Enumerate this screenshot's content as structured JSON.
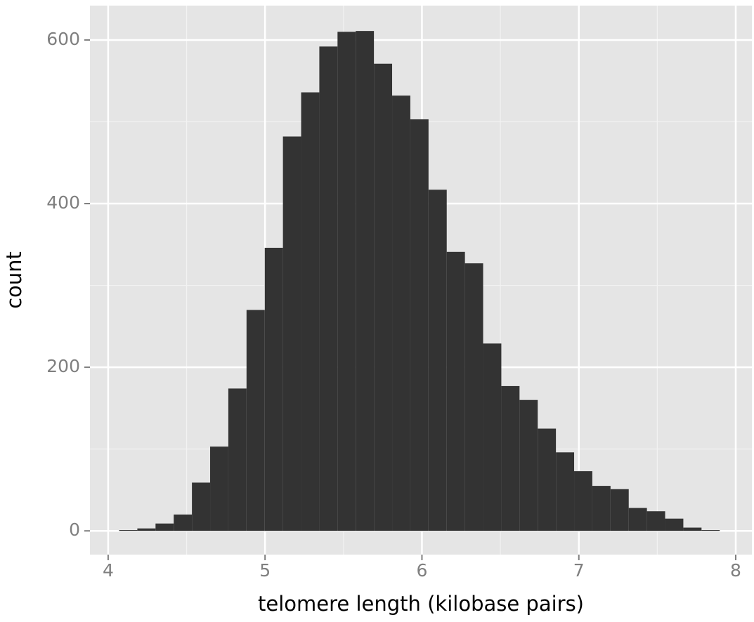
{
  "chart_data": {
    "type": "histogram",
    "x_label": "telomere length (kilobase pairs)",
    "y_label": "count",
    "bins": [
      4.07,
      4.186,
      4.302,
      4.418,
      4.534,
      4.65,
      4.766,
      4.882,
      4.998,
      5.114,
      5.23,
      5.346,
      5.462,
      5.578,
      5.694,
      5.81,
      5.926,
      6.042,
      6.158,
      6.274,
      6.39,
      6.506,
      6.622,
      6.738,
      6.854,
      6.97,
      7.086,
      7.202,
      7.318,
      7.434,
      7.55,
      7.666,
      7.782,
      7.898
    ],
    "values": [
      1,
      3,
      9,
      20,
      59,
      103,
      174,
      270,
      346,
      482,
      536,
      592,
      610,
      611,
      571,
      532,
      503,
      417,
      341,
      327,
      229,
      177,
      160,
      125,
      96,
      73,
      55,
      51,
      28,
      24,
      15,
      4,
      1
    ],
    "color": "#333333",
    "background": "#e5e5e5",
    "grid": true,
    "xlim": [
      3.884,
      8.103
    ],
    "ylim": [
      -29,
      642
    ],
    "xticks": [
      4,
      5,
      6,
      7,
      8
    ],
    "yticks": [
      0,
      200,
      400,
      600
    ]
  }
}
